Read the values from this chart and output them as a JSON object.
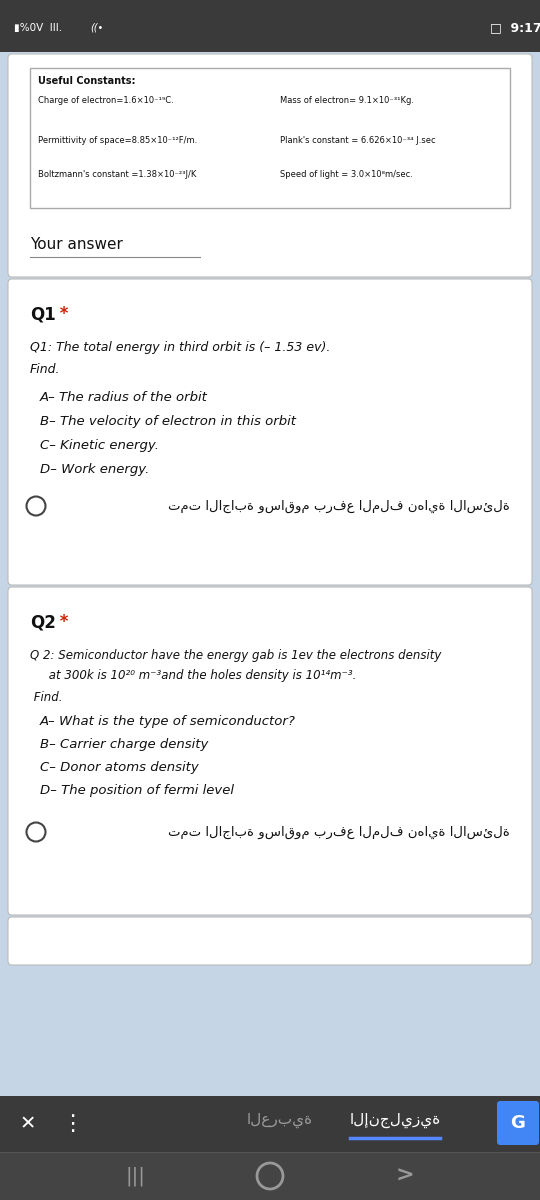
{
  "status_bar_bg": "#3a3a3a",
  "status_bar_right": "9:17",
  "page_bg": "#c5d5e5",
  "card_bg": "#ffffff",
  "constants_title": "Useful Constants:",
  "constants_row1_left": "Charge of electron=1.6×10⁻¹⁹C.",
  "constants_row1_right": "Mass of electron= 9.1×10⁻³¹Kg.",
  "constants_row2_left": "Permittivity of space=8.85×10⁻¹²F/m.",
  "constants_row2_right": "Plank's constant = 6.626×10⁻³⁴ J.sec",
  "constants_row3_left": "Boltzmann's constant =1.38×10⁻²³J/K",
  "constants_row3_right": "Speed of light = 3.0×10⁸m/sec.",
  "your_answer_label": "Your answer",
  "q1_label": "Q1",
  "q1_star_color": "#cc2200",
  "q1_text_line1": "Q1: The total energy in third orbit is (– 1.53 ev).",
  "q1_text_line2": "Find.",
  "q1_items": [
    "A– The radius of the orbit",
    "B– The velocity of electron in this orbit",
    "C– Kinetic energy.",
    "D– Work energy."
  ],
  "q1_arabic": "تمت الاجابة وساقوم برفع الملف نهاية الاسئلة",
  "q2_label": "Q2",
  "q2_star_color": "#cc2200",
  "q2_text_line1": "Q 2: Semiconductor have the energy gab is 1ev the electrons density",
  "q2_text_line2": "     at 300k is 10²⁰ m⁻³and the holes density is 10¹⁴m⁻³.",
  "q2_text_line3": " Find.",
  "q2_items": [
    "A– What is the type of semiconductor?",
    "B– Carrier charge density",
    "C– Donor atoms density",
    "D– The position of fermi level"
  ],
  "q2_arabic": "تمت الاجابة وساقوم برفع الملف نهاية الاسئلة",
  "bottom_bar_bg": "#3a3a3a",
  "bottom_bar2_bg": "#444444",
  "lang_active": "الإنجليزية",
  "lang_inactive": "العربية",
  "lang_underline": "#5588ff",
  "text_dark": "#111111",
  "text_white": "#ffffff",
  "text_gray": "#999999",
  "radio_color": "#444444"
}
